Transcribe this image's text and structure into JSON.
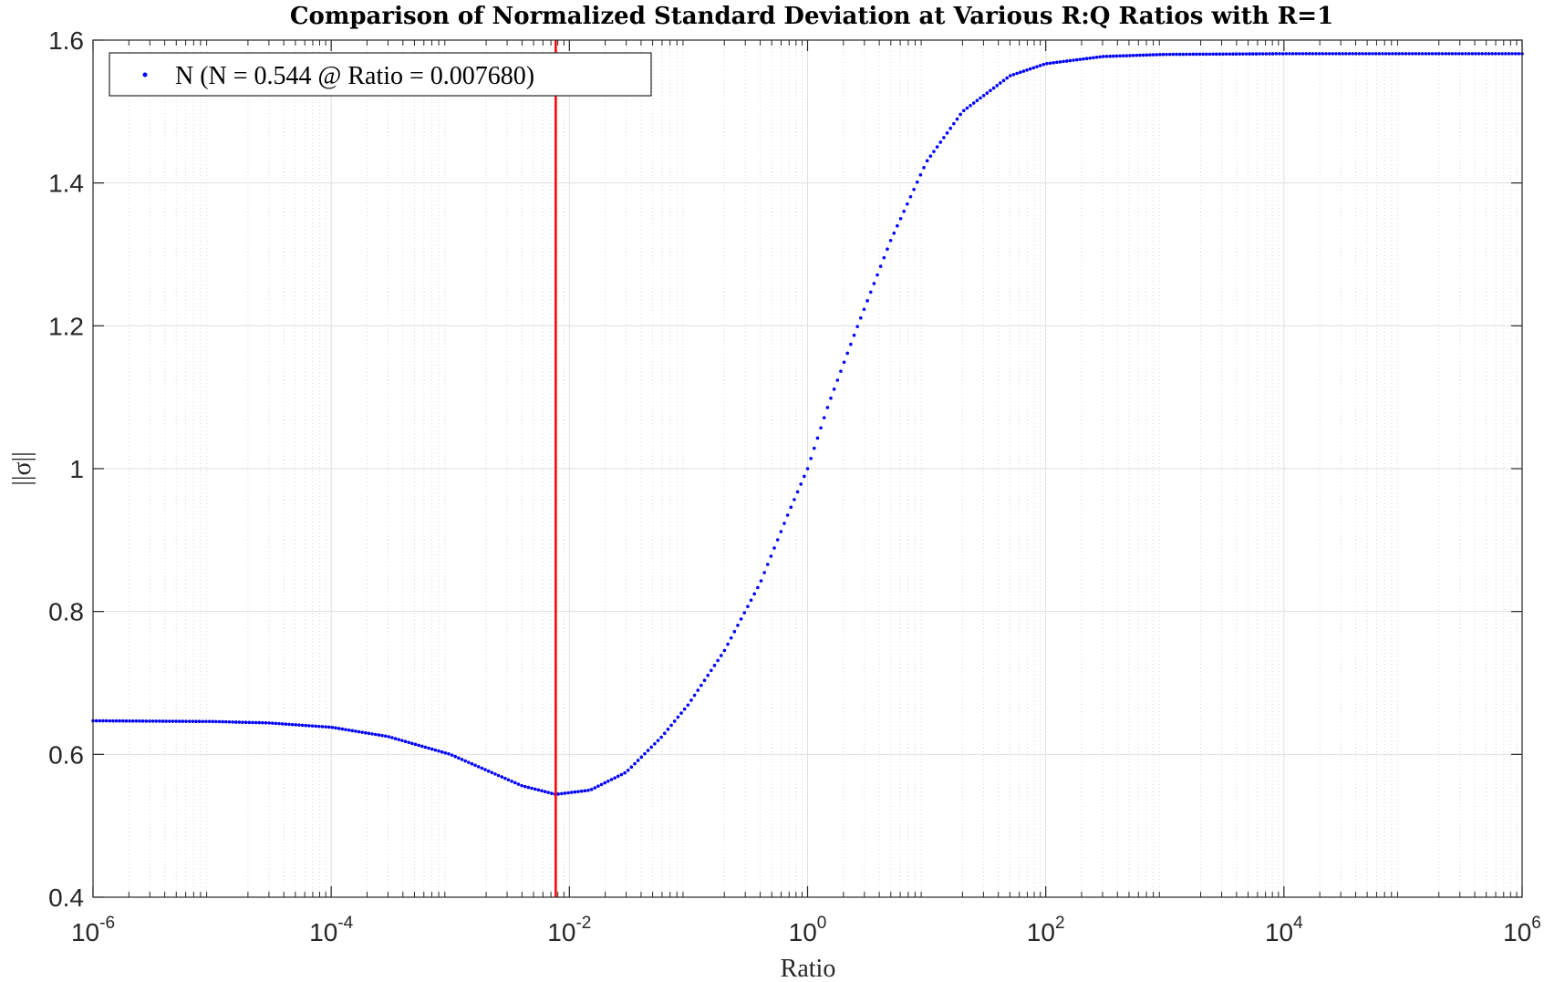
{
  "chart_data": {
    "type": "scatter",
    "title": "Comparison of Normalized Standard Deviation at Various R:Q Ratios with R=1",
    "xlabel": "Ratio",
    "ylabel": "||σ||",
    "xscale": "log",
    "xlim": [
      1e-06,
      1000000.0
    ],
    "ylim": [
      0.4,
      1.6
    ],
    "xticks": [
      {
        "value": 1e-06,
        "base": "10",
        "exp": "-6"
      },
      {
        "value": 0.0001,
        "base": "10",
        "exp": "-4"
      },
      {
        "value": 0.01,
        "base": "10",
        "exp": "-2"
      },
      {
        "value": 1,
        "base": "10",
        "exp": "0"
      },
      {
        "value": 100,
        "base": "10",
        "exp": "2"
      },
      {
        "value": 10000,
        "base": "10",
        "exp": "4"
      },
      {
        "value": 1000000,
        "base": "10",
        "exp": "6"
      }
    ],
    "yticks": [
      {
        "value": 0.4,
        "label": "0.4"
      },
      {
        "value": 0.6,
        "label": "0.6"
      },
      {
        "value": 0.8,
        "label": "0.8"
      },
      {
        "value": 1.0,
        "label": "1"
      },
      {
        "value": 1.2,
        "label": "1.2"
      },
      {
        "value": 1.4,
        "label": "1.4"
      },
      {
        "value": 1.6,
        "label": "1.6"
      }
    ],
    "grid": true,
    "legend_position": "top-left",
    "series": [
      {
        "name": "N (N = 0.544 @ Ratio = 0.007680)",
        "color": "#0000ff",
        "marker": "point",
        "points": [
          {
            "x": 1e-06,
            "y": 0.647
          },
          {
            "x": 1e-05,
            "y": 0.646
          },
          {
            "x": 3e-05,
            "y": 0.644
          },
          {
            "x": 0.0001,
            "y": 0.638
          },
          {
            "x": 0.0003,
            "y": 0.625
          },
          {
            "x": 0.001,
            "y": 0.6
          },
          {
            "x": 0.002,
            "y": 0.578
          },
          {
            "x": 0.004,
            "y": 0.556
          },
          {
            "x": 0.00768,
            "y": 0.544
          },
          {
            "x": 0.015,
            "y": 0.55
          },
          {
            "x": 0.03,
            "y": 0.575
          },
          {
            "x": 0.06,
            "y": 0.625
          },
          {
            "x": 0.1,
            "y": 0.67
          },
          {
            "x": 0.2,
            "y": 0.745
          },
          {
            "x": 0.4,
            "y": 0.84
          },
          {
            "x": 0.7,
            "y": 0.94
          },
          {
            "x": 1.0,
            "y": 1.0
          },
          {
            "x": 1.5,
            "y": 1.09
          },
          {
            "x": 2.5,
            "y": 1.19
          },
          {
            "x": 5,
            "y": 1.32
          },
          {
            "x": 10,
            "y": 1.43
          },
          {
            "x": 20,
            "y": 1.5
          },
          {
            "x": 50,
            "y": 1.55
          },
          {
            "x": 100,
            "y": 1.567
          },
          {
            "x": 300,
            "y": 1.577
          },
          {
            "x": 1000,
            "y": 1.58
          },
          {
            "x": 10000,
            "y": 1.581
          },
          {
            "x": 1000000,
            "y": 1.581
          }
        ]
      }
    ],
    "annotations": [
      {
        "type": "vertical-line",
        "x": 0.00768,
        "color": "#ff0000"
      }
    ]
  }
}
